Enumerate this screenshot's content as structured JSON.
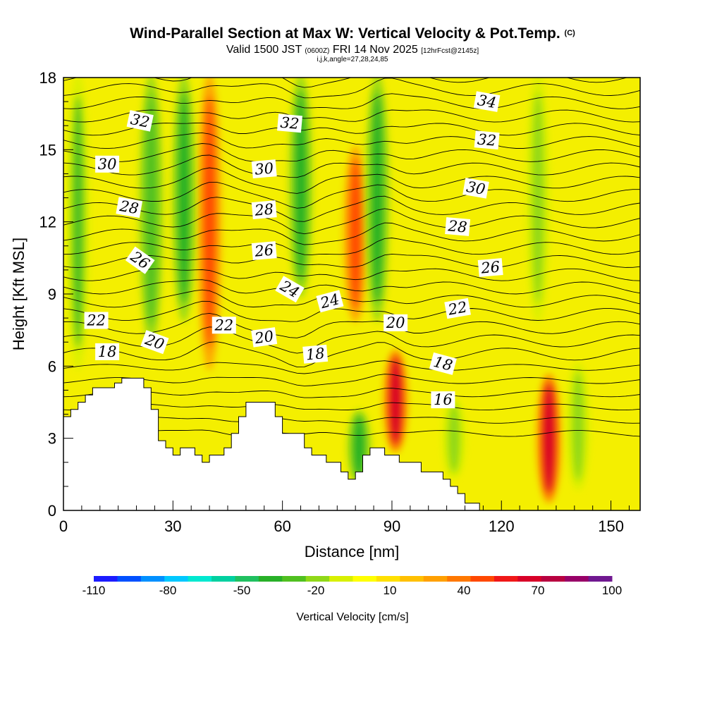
{
  "chart_data": {
    "type": "heatmap",
    "title": "Wind-Parallel Section at Max W: Vertical Velocity & Pot.Temp.",
    "title_mark": "(C)",
    "subtitle_prefix": "Valid 1500 JST",
    "subtitle_zulu": "(0600Z)",
    "subtitle_date": "FRI 14 Nov 2025",
    "subtitle_forecast": "[12hrFcst@2145z]",
    "subtitle_indices": "i,j,k,angle=27,28,24,85",
    "xlabel": "Distance [nm]",
    "ylabel": "Height [Kft MSL]",
    "xlim": [
      0,
      158
    ],
    "ylim": [
      0,
      18
    ],
    "xticks": [
      0,
      30,
      60,
      90,
      120,
      150
    ],
    "yticks": [
      0,
      3,
      6,
      9,
      12,
      15,
      18
    ],
    "colorbar": {
      "label": "Vertical Velocity [cm/s]",
      "range": [
        -110,
        100
      ],
      "ticks": [
        -110,
        -80,
        -50,
        -20,
        10,
        40,
        70,
        100
      ],
      "colors": [
        "#1c1cff",
        "#0050ff",
        "#0090ff",
        "#00c8ff",
        "#00e8d0",
        "#00d0a0",
        "#20c060",
        "#28b028",
        "#50c020",
        "#90d818",
        "#d8f000",
        "#ffff00",
        "#ffe000",
        "#ffc000",
        "#ffa000",
        "#ff7800",
        "#ff4800",
        "#f01818",
        "#d80028",
        "#b80040",
        "#980068",
        "#701890"
      ]
    },
    "terrain_kft": [
      [
        0,
        3.9
      ],
      [
        2,
        3.9
      ],
      [
        2,
        4.2
      ],
      [
        4,
        4.2
      ],
      [
        4,
        4.5
      ],
      [
        6,
        4.5
      ],
      [
        6,
        4.8
      ],
      [
        8,
        4.8
      ],
      [
        8,
        5.1
      ],
      [
        14,
        5.1
      ],
      [
        14,
        5.3
      ],
      [
        16,
        5.3
      ],
      [
        16,
        5.5
      ],
      [
        22,
        5.5
      ],
      [
        22,
        5.1
      ],
      [
        24,
        5.1
      ],
      [
        24,
        4.2
      ],
      [
        26,
        4.2
      ],
      [
        26,
        2.9
      ],
      [
        28,
        2.9
      ],
      [
        28,
        2.6
      ],
      [
        30,
        2.6
      ],
      [
        30,
        2.3
      ],
      [
        32,
        2.3
      ],
      [
        32,
        2.6
      ],
      [
        36,
        2.6
      ],
      [
        36,
        2.3
      ],
      [
        38,
        2.3
      ],
      [
        38,
        2.0
      ],
      [
        40,
        2.0
      ],
      [
        40,
        2.3
      ],
      [
        44,
        2.3
      ],
      [
        44,
        2.6
      ],
      [
        46,
        2.6
      ],
      [
        46,
        3.2
      ],
      [
        48,
        3.2
      ],
      [
        48,
        3.9
      ],
      [
        50,
        3.9
      ],
      [
        50,
        4.5
      ],
      [
        58,
        4.5
      ],
      [
        58,
        3.9
      ],
      [
        60,
        3.9
      ],
      [
        60,
        3.2
      ],
      [
        66,
        3.2
      ],
      [
        66,
        2.6
      ],
      [
        68,
        2.6
      ],
      [
        68,
        2.3
      ],
      [
        72,
        2.3
      ],
      [
        72,
        2.0
      ],
      [
        76,
        2.0
      ],
      [
        76,
        1.6
      ],
      [
        78,
        1.6
      ],
      [
        78,
        1.3
      ],
      [
        80,
        1.3
      ],
      [
        80,
        1.6
      ],
      [
        82,
        1.6
      ],
      [
        82,
        2.3
      ],
      [
        84,
        2.3
      ],
      [
        84,
        2.6
      ],
      [
        88,
        2.6
      ],
      [
        88,
        2.3
      ],
      [
        92,
        2.3
      ],
      [
        92,
        2.0
      ],
      [
        98,
        2.0
      ],
      [
        98,
        1.6
      ],
      [
        104,
        1.6
      ],
      [
        104,
        1.3
      ],
      [
        106,
        1.3
      ],
      [
        106,
        1.0
      ],
      [
        108,
        1.0
      ],
      [
        108,
        0.7
      ],
      [
        110,
        0.7
      ],
      [
        110,
        0.3
      ],
      [
        114,
        0.3
      ],
      [
        114,
        0.0
      ]
    ],
    "w_features": [
      {
        "x": 40,
        "top": 18,
        "bottom": 6,
        "value": 50
      },
      {
        "x": 33,
        "top": 18,
        "bottom": 8,
        "value": -35
      },
      {
        "x": 24,
        "top": 18,
        "bottom": 7,
        "value": -30
      },
      {
        "x": 65,
        "top": 18,
        "bottom": 9,
        "value": -35
      },
      {
        "x": 80,
        "top": 15,
        "bottom": 8,
        "value": 45
      },
      {
        "x": 86,
        "top": 18,
        "bottom": 8,
        "value": -35
      },
      {
        "x": 91,
        "top": 6.5,
        "bottom": 2.6,
        "value": 65
      },
      {
        "x": 81,
        "top": 4.0,
        "bottom": 1.3,
        "value": -40
      },
      {
        "x": 133,
        "top": 5.5,
        "bottom": 0.5,
        "value": 70
      },
      {
        "x": 141,
        "top": 6.0,
        "bottom": 1.0,
        "value": -20
      },
      {
        "x": 4,
        "top": 18,
        "bottom": 6,
        "value": -25
      },
      {
        "x": 107,
        "top": 4.5,
        "bottom": 1.5,
        "value": -20
      },
      {
        "x": 130,
        "top": 18,
        "bottom": 8,
        "value": -20
      }
    ],
    "contour_labels": [
      {
        "text": "32",
        "x": 21,
        "y": 16.2,
        "rot": 12
      },
      {
        "text": "30",
        "x": 12,
        "y": 14.4,
        "rot": 0
      },
      {
        "text": "28",
        "x": 18,
        "y": 12.6,
        "rot": 10
      },
      {
        "text": "26",
        "x": 21,
        "y": 10.4,
        "rot": 35
      },
      {
        "text": "22",
        "x": 9,
        "y": 7.9,
        "rot": 0
      },
      {
        "text": "18",
        "x": 12,
        "y": 6.6,
        "rot": 0
      },
      {
        "text": "20",
        "x": 25,
        "y": 7.0,
        "rot": 20
      },
      {
        "text": "22",
        "x": 44,
        "y": 7.7,
        "rot": 0
      },
      {
        "text": "32",
        "x": 62,
        "y": 16.1,
        "rot": 5
      },
      {
        "text": "30",
        "x": 55,
        "y": 14.2,
        "rot": -5
      },
      {
        "text": "28",
        "x": 55,
        "y": 12.5,
        "rot": -5
      },
      {
        "text": "26",
        "x": 55,
        "y": 10.8,
        "rot": -5
      },
      {
        "text": "24",
        "x": 62,
        "y": 9.2,
        "rot": 30
      },
      {
        "text": "24",
        "x": 73,
        "y": 8.7,
        "rot": -15
      },
      {
        "text": "20",
        "x": 55,
        "y": 7.2,
        "rot": -8
      },
      {
        "text": "18",
        "x": 69,
        "y": 6.5,
        "rot": -5
      },
      {
        "text": "20",
        "x": 91,
        "y": 7.8,
        "rot": 0
      },
      {
        "text": "34",
        "x": 116,
        "y": 17.0,
        "rot": 10
      },
      {
        "text": "32",
        "x": 116,
        "y": 15.4,
        "rot": 5
      },
      {
        "text": "30",
        "x": 113,
        "y": 13.4,
        "rot": 10
      },
      {
        "text": "28",
        "x": 108,
        "y": 11.8,
        "rot": 5
      },
      {
        "text": "26",
        "x": 117,
        "y": 10.1,
        "rot": -5
      },
      {
        "text": "22",
        "x": 108,
        "y": 8.4,
        "rot": -10
      },
      {
        "text": "18",
        "x": 104,
        "y": 6.1,
        "rot": 15
      },
      {
        "text": "16",
        "x": 104,
        "y": 4.6,
        "rot": 0
      }
    ]
  }
}
